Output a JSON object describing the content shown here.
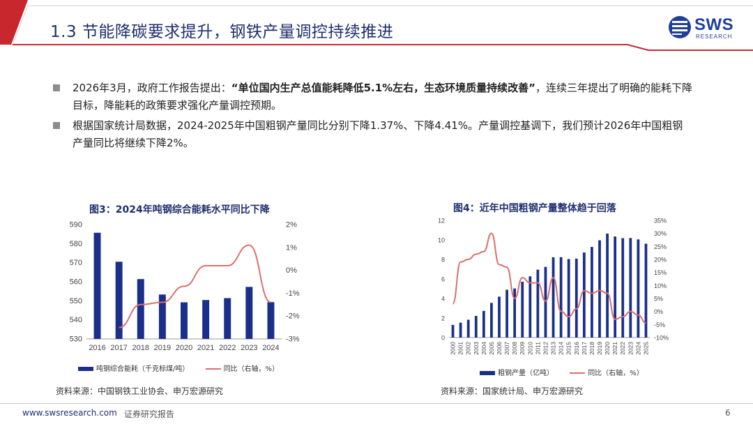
{
  "header": {
    "title": "1.3 节能降碳要求提升，钢铁产量调控持续推进",
    "logo_text": "SWS",
    "logo_sub": "RESEARCH",
    "accent_red": "#c8282d",
    "accent_blue": "#1f2f6e"
  },
  "bullets": [
    {
      "pre": "2026年3月，政府工作报告提出：",
      "bold": "“单位国内生产总值能耗降低5.1%左右，生态环境质量持续改善”",
      "post": "，连续三年提出了明确的能耗下降目标，降能耗的政策要求强化产量调控预期。"
    },
    {
      "pre": "根据国家统计局数据，2024-2025年中国粗钢产量同比分别下降1.37%、下降4.41%。产量调控基调下，我们预计2026年中国粗钢产量同比将继续下降2%。",
      "bold": "",
      "post": ""
    }
  ],
  "chart_data": [
    {
      "type": "bar",
      "title": "图3：2024年吨钢综合能耗水平同比下降",
      "categories": [
        "2016",
        "2017",
        "2018",
        "2019",
        "2020",
        "2021",
        "2022",
        "2023",
        "2024"
      ],
      "series": [
        {
          "name": "吨钢综合能耗（千克标煤/吨）",
          "type": "bar",
          "axis": "left",
          "values": [
            585.7,
            570.5,
            561.4,
            553.3,
            549.2,
            550.4,
            551.4,
            557.3,
            549.3
          ]
        },
        {
          "name": "同比（右轴，%）",
          "type": "line",
          "axis": "right",
          "values": [
            null,
            -2.5,
            -1.5,
            -1.4,
            -0.7,
            0.2,
            0.2,
            1.1,
            -1.4
          ]
        }
      ],
      "ylim_left": [
        530,
        590
      ],
      "yticks_left": [
        "590",
        "580",
        "570",
        "560",
        "550",
        "540",
        "530"
      ],
      "ylim_right": [
        -3,
        2
      ],
      "yticks_right": [
        "2%",
        "1%",
        "0%",
        "-1%",
        "-2%",
        "-3%"
      ],
      "bar_color": "#1b2f8a",
      "line_color": "#d9706b",
      "source": "资料来源：中国钢铁工业协会、申万宏源研究"
    },
    {
      "type": "bar",
      "title": "图4：近年中国粗钢产量整体趋于回落",
      "categories": [
        "2000",
        "2001",
        "2002",
        "2003",
        "2004",
        "2005",
        "2006",
        "2007",
        "2008",
        "2009",
        "2010",
        "2011",
        "2012",
        "2013",
        "2014",
        "2015",
        "2016",
        "2017",
        "2018",
        "2019",
        "2020",
        "2021",
        "2022",
        "2023",
        "2024",
        "2025"
      ],
      "series": [
        {
          "name": "粗钢产量（亿吨）",
          "type": "bar",
          "axis": "left",
          "values": [
            1.29,
            1.52,
            1.82,
            2.22,
            2.73,
            3.55,
            4.19,
            4.89,
            5.03,
            5.72,
            6.27,
            6.95,
            7.24,
            8.22,
            8.23,
            8.04,
            8.08,
            8.71,
            9.28,
            9.96,
            10.65,
            10.35,
            10.18,
            10.19,
            10.05,
            9.61
          ]
        },
        {
          "name": "同比（右轴，%）",
          "type": "line",
          "axis": "right",
          "values": [
            3,
            19,
            20,
            22,
            23,
            30,
            18,
            17,
            5,
            13,
            11,
            11,
            4,
            13,
            0,
            -2,
            1,
            8,
            7,
            8,
            7,
            -3,
            -2,
            0,
            -1.37,
            -4.41
          ]
        }
      ],
      "ylim_left": [
        0,
        12
      ],
      "yticks_left": [
        "12",
        "10",
        "8",
        "6",
        "4",
        "2",
        "0"
      ],
      "ylim_right": [
        -10,
        35
      ],
      "yticks_right": [
        "35%",
        "30%",
        "25%",
        "20%",
        "15%",
        "10%",
        "5%",
        "0%",
        "-5%",
        "-10%"
      ],
      "bar_color": "#1b2f8a",
      "line_color": "#d9706b",
      "source": "资料来源：国家统计局、申万宏源研究"
    }
  ],
  "footer": {
    "url": "www.swsresearch.com",
    "label": "证券研究报告",
    "page": "6"
  }
}
